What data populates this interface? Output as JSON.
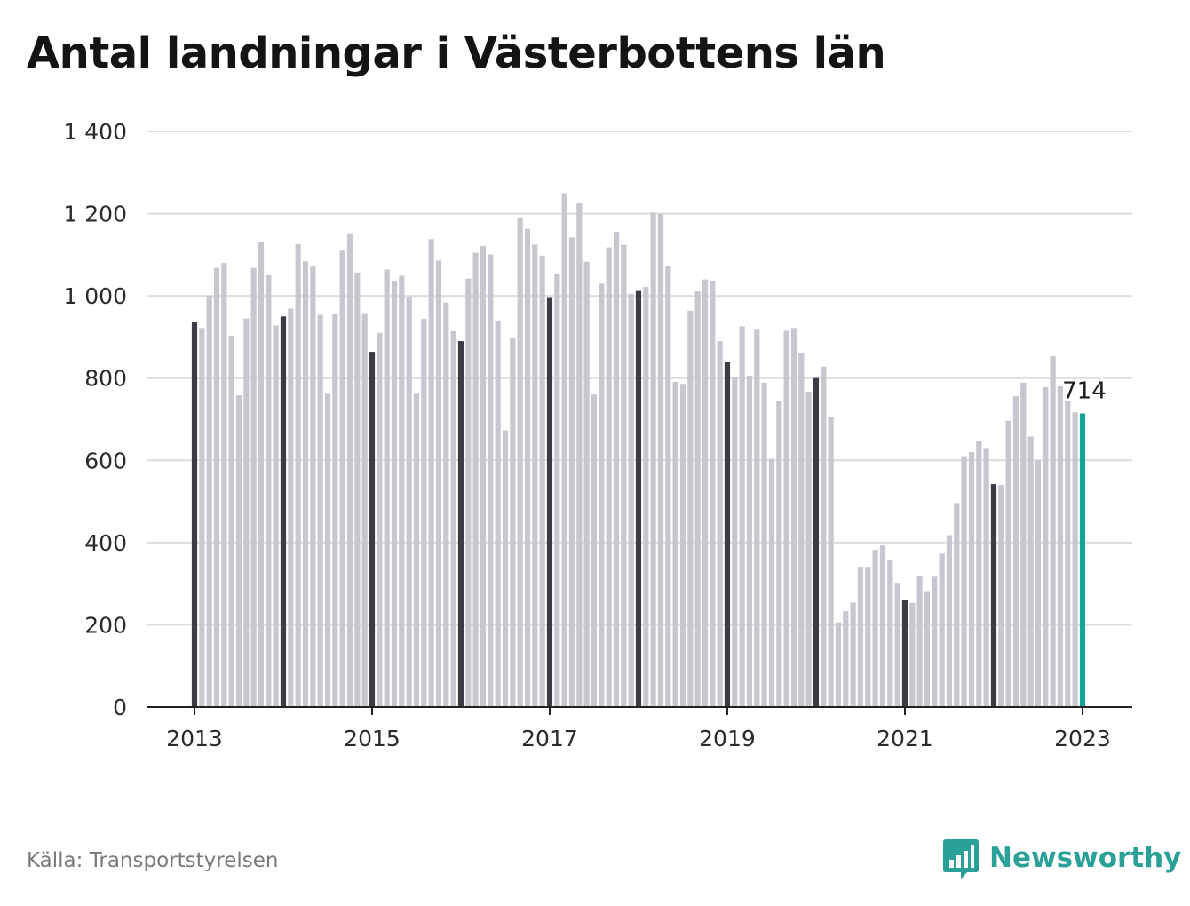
{
  "title": "Antal landningar i Västerbottens län",
  "source": "Källa: Transportstyrelsen",
  "brand": {
    "name": "Newsworthy",
    "icon": "bar-chart-speech-bubble-icon"
  },
  "colors": {
    "bar": "#c7c7cf",
    "january_bar": "#3d3c46",
    "latest_bar": "#14a596",
    "grid": "#dddddd",
    "axis": "#222222",
    "brand": "#2aa198"
  },
  "chart_data": {
    "type": "bar",
    "x_start": "2013-01",
    "x_end": "2023-01",
    "frequency": "monthly",
    "title": "Antal landningar i Västerbottens län",
    "xlabel": "",
    "ylabel": "",
    "ylim": [
      0,
      1400
    ],
    "yticks": [
      0,
      200,
      400,
      600,
      800,
      1000,
      1200,
      1400
    ],
    "ytick_labels": [
      "0",
      "200",
      "400",
      "600",
      "800",
      "1 000",
      "1 200",
      "1 400"
    ],
    "xticks": [
      "2013",
      "2015",
      "2017",
      "2019",
      "2021",
      "2023"
    ],
    "grid": true,
    "highlight": "januari bars dark; latest bar teal",
    "series": [
      {
        "values": [
          937,
          922,
          1000,
          1068,
          1080,
          903,
          758,
          945,
          1068,
          1131,
          1050,
          928,
          950,
          969,
          1126,
          1084,
          1071,
          954,
          762,
          957,
          1110,
          1152,
          1057,
          958,
          864,
          910,
          1064,
          1037,
          1049,
          998,
          762,
          944,
          1138,
          1086,
          984,
          914,
          890,
          1042,
          1105,
          1121,
          1101,
          940,
          673,
          899,
          1191,
          1163,
          1125,
          1098,
          997,
          1054,
          1250,
          1142,
          1226,
          1083,
          760,
          1030,
          1118,
          1156,
          1124,
          1005,
          1012,
          1022,
          1203,
          1200,
          1073,
          791,
          786,
          964,
          1011,
          1040,
          1037,
          890,
          840,
          803,
          926,
          806,
          920,
          789,
          604,
          745,
          915,
          922,
          862,
          767,
          800,
          828,
          706,
          206,
          233,
          254,
          341,
          341,
          382,
          393,
          358,
          302,
          260,
          253,
          318,
          282,
          317,
          373,
          418,
          496,
          610,
          620,
          648,
          630,
          542,
          540,
          696,
          756,
          789,
          658,
          600,
          778,
          853,
          780,
          747,
          717,
          714
        ]
      }
    ],
    "last_value_label": "714"
  }
}
